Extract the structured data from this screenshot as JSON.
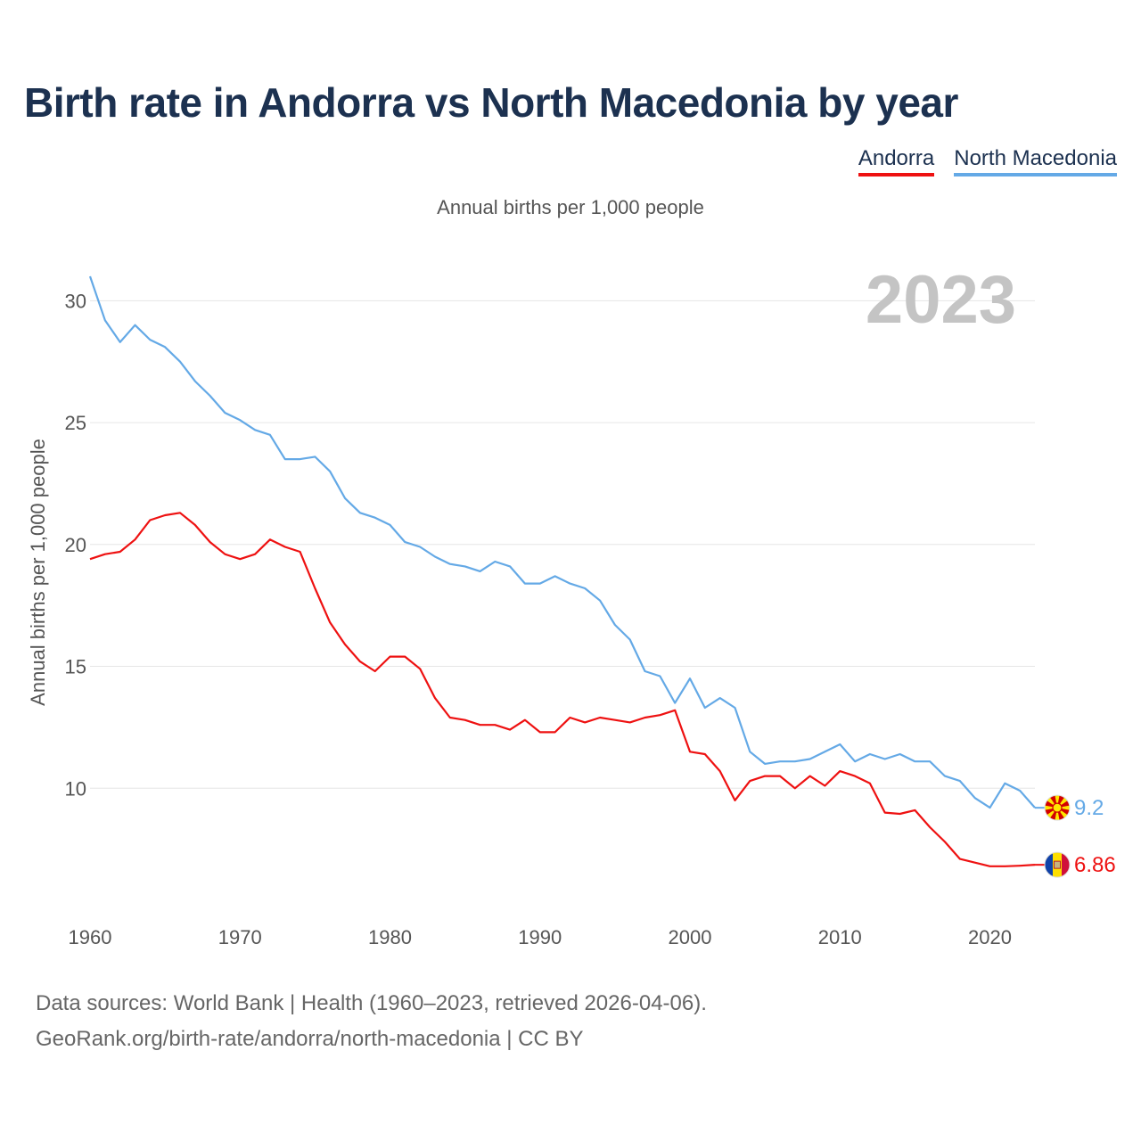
{
  "title": "Birth rate in Andorra vs North Macedonia by year",
  "subtitle": "Annual births per 1,000 people",
  "legend": [
    {
      "label": "Andorra",
      "color": "#ee1111"
    },
    {
      "label": "North Macedonia",
      "color": "#64a9e6"
    }
  ],
  "footer": {
    "line1": "Data sources: World Bank | Health (1960–2023, retrieved 2026-04-06).",
    "line2": "GeoRank.org/birth-rate/andorra/north-macedonia | CC BY"
  },
  "chart_data": {
    "type": "line",
    "title": "Birth rate in Andorra vs North Macedonia by year",
    "subtitle": "Annual births per 1,000 people",
    "xlabel": "",
    "ylabel": "Annual births per 1,000 people",
    "current_year": "2023",
    "xlim": [
      1960,
      2023
    ],
    "ylim": [
      5,
      31
    ],
    "xticks": [
      1960,
      1970,
      1980,
      1990,
      2000,
      2010,
      2020
    ],
    "yticks": [
      10,
      15,
      20,
      25,
      30
    ],
    "grid": true,
    "legend_position": "top-right",
    "x": [
      1960,
      1961,
      1962,
      1963,
      1964,
      1965,
      1966,
      1967,
      1968,
      1969,
      1970,
      1971,
      1972,
      1973,
      1974,
      1975,
      1976,
      1977,
      1978,
      1979,
      1980,
      1981,
      1982,
      1983,
      1984,
      1985,
      1986,
      1987,
      1988,
      1989,
      1990,
      1991,
      1992,
      1993,
      1994,
      1995,
      1996,
      1997,
      1998,
      1999,
      2000,
      2001,
      2002,
      2003,
      2004,
      2005,
      2006,
      2007,
      2008,
      2009,
      2010,
      2011,
      2012,
      2013,
      2014,
      2015,
      2016,
      2017,
      2018,
      2019,
      2020,
      2021,
      2022,
      2023
    ],
    "series": [
      {
        "name": "Andorra",
        "color": "#ee1111",
        "end_label": "6.86",
        "flag_icon": "andorra-flag-icon",
        "values": [
          19.4,
          19.6,
          19.7,
          20.2,
          21.0,
          21.2,
          21.3,
          20.8,
          20.1,
          19.6,
          19.4,
          19.6,
          20.2,
          19.9,
          19.7,
          18.2,
          16.8,
          15.9,
          15.2,
          14.8,
          15.4,
          15.4,
          14.9,
          13.7,
          12.9,
          12.8,
          12.6,
          12.6,
          12.4,
          12.8,
          12.3,
          12.3,
          12.9,
          12.7,
          12.9,
          12.8,
          12.7,
          12.9,
          13.0,
          13.2,
          11.5,
          11.4,
          10.7,
          9.5,
          10.3,
          10.5,
          10.5,
          10.0,
          10.5,
          10.1,
          10.7,
          10.5,
          10.2,
          9.0,
          8.95,
          9.1,
          8.4,
          7.8,
          7.1,
          6.95,
          6.8,
          6.8,
          6.82,
          6.86
        ]
      },
      {
        "name": "North Macedonia",
        "color": "#64a9e6",
        "end_label": "9.2",
        "flag_icon": "north-macedonia-flag-icon",
        "values": [
          31.0,
          29.2,
          28.3,
          29.0,
          28.4,
          28.1,
          27.5,
          26.7,
          26.1,
          25.4,
          25.1,
          24.7,
          24.5,
          23.5,
          23.5,
          23.6,
          23.0,
          21.9,
          21.3,
          21.1,
          20.8,
          20.1,
          19.9,
          19.5,
          19.2,
          19.1,
          18.9,
          19.3,
          19.1,
          18.4,
          18.4,
          18.7,
          18.4,
          18.2,
          17.7,
          16.7,
          16.1,
          14.8,
          14.6,
          13.5,
          14.5,
          13.3,
          13.7,
          13.3,
          11.5,
          11.0,
          11.1,
          11.1,
          11.2,
          11.5,
          11.8,
          11.1,
          11.4,
          11.2,
          11.4,
          11.1,
          11.1,
          10.5,
          10.3,
          9.6,
          9.2,
          10.2,
          9.9,
          9.2
        ]
      }
    ]
  }
}
